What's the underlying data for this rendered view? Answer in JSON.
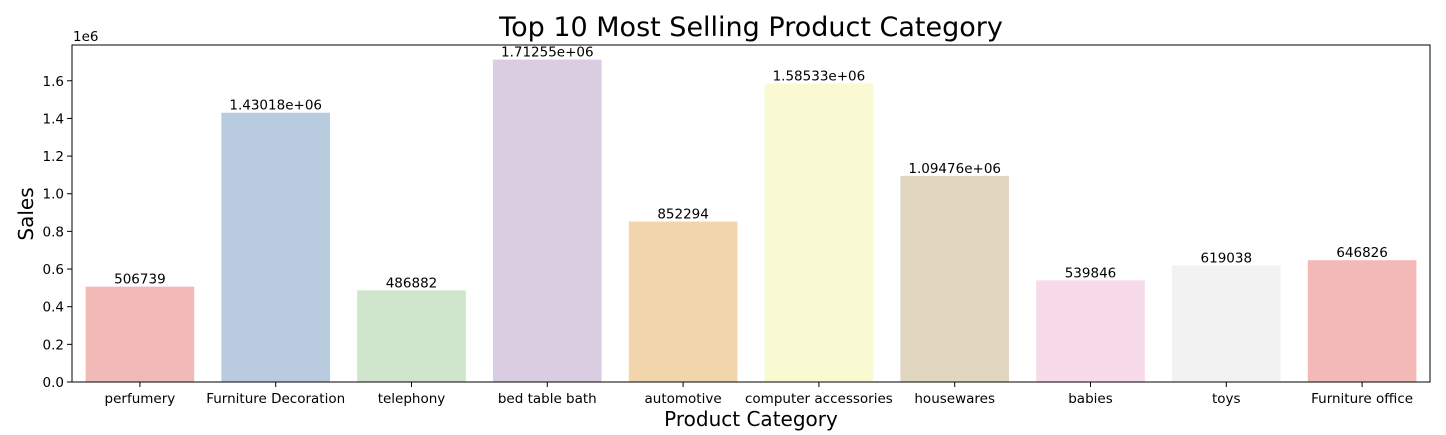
{
  "chart_data": {
    "type": "bar",
    "title": "Top 10 Most Selling Product Category",
    "xlabel": "Product Category",
    "ylabel": "Sales",
    "y_offset_label": "1e6",
    "ylim": [
      0,
      1.79
    ],
    "y_ticks": [
      0.0,
      0.2,
      0.4,
      0.6,
      0.8,
      1.0,
      1.2,
      1.4,
      1.6
    ],
    "y_tick_labels": [
      "0.0",
      "0.2",
      "0.4",
      "0.6",
      "0.8",
      "1.0",
      "1.2",
      "1.4",
      "1.6"
    ],
    "grid": false,
    "categories": [
      "perfumery",
      "Furniture Decoration",
      "telephony",
      "bed table bath",
      "automotive",
      "computer accessories",
      "housewares",
      "babies",
      "toys",
      "Furniture office"
    ],
    "values": [
      506739,
      1430180,
      486882,
      1712550,
      852294,
      1585330,
      1094760,
      539846,
      619038,
      646826
    ],
    "data_labels": [
      "506739",
      "1.43018e+06",
      "486882",
      "1.71255e+06",
      "852294",
      "1.58533e+06",
      "1.09476e+06",
      "539846",
      "619038",
      "646826"
    ],
    "colors": [
      "#f2bab7",
      "#b8cbdf",
      "#d0e6cc",
      "#dacce1",
      "#f2d5ad",
      "#f9f9d2",
      "#e1d6c0",
      "#f7dbea",
      "#f2f2f2",
      "#f2b9b6"
    ]
  }
}
